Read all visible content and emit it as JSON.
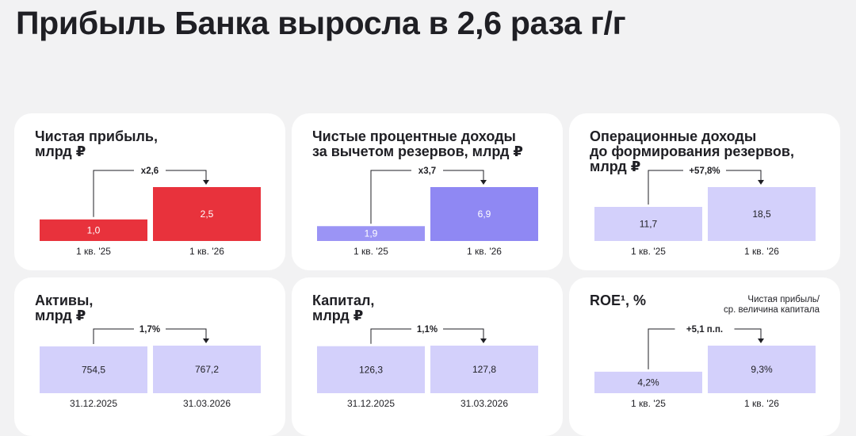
{
  "page": {
    "title": "Прибыль Банка выросла в 2,6 раза г/г"
  },
  "chart_data": [
    {
      "type": "bar",
      "title": "Чистая прибыль,\nмлрд ₽",
      "categories": [
        "1 кв. '25",
        "1 кв. '26"
      ],
      "values": [
        1.0,
        2.5
      ],
      "value_labels": [
        "1,0",
        "2,5"
      ],
      "change_label": "x2,6",
      "bar_colors": [
        "#e8323c",
        "#e8323c"
      ],
      "label_color": "#ffffff",
      "ylim": [
        0,
        2.5
      ]
    },
    {
      "type": "bar",
      "title": "Чистые процентные доходы\nза вычетом резервов, млрд ₽",
      "categories": [
        "1 кв. '25",
        "1 кв. '26"
      ],
      "values": [
        1.9,
        6.9
      ],
      "value_labels": [
        "1,9",
        "6,9"
      ],
      "change_label": "x3,7",
      "bar_colors": [
        "#9b94f5",
        "#8f88f3"
      ],
      "label_color": "#ffffff",
      "ylim": [
        0,
        6.9
      ]
    },
    {
      "type": "bar",
      "title": "Операционные доходы\nдо формирования резервов,\nмлрд ₽",
      "categories": [
        "1 кв. '25",
        "1 кв. '26"
      ],
      "values": [
        11.7,
        18.5
      ],
      "value_labels": [
        "11,7",
        "18,5"
      ],
      "change_label": "+57,8%",
      "bar_colors": [
        "#d3d0fb",
        "#d3d0fb"
      ],
      "label_color": "#1f1f24",
      "ylim": [
        0,
        18.5
      ]
    },
    {
      "type": "bar",
      "title": "Активы,\nмлрд ₽",
      "categories": [
        "31.12.2025",
        "31.03.2026"
      ],
      "values": [
        754.5,
        767.2
      ],
      "value_labels": [
        "754,5",
        "767,2"
      ],
      "change_label": "1,7%",
      "bar_colors": [
        "#d3d0fb",
        "#d3d0fb"
      ],
      "label_color": "#1f1f24",
      "ylim": [
        0,
        767.2
      ]
    },
    {
      "type": "bar",
      "title": "Капитал,\nмлрд ₽",
      "categories": [
        "31.12.2025",
        "31.03.2026"
      ],
      "values": [
        126.3,
        127.8
      ],
      "value_labels": [
        "126,3",
        "127,8"
      ],
      "change_label": "1,1%",
      "bar_colors": [
        "#d3d0fb",
        "#d3d0fb"
      ],
      "label_color": "#1f1f24",
      "ylim": [
        0,
        127.8
      ]
    },
    {
      "type": "bar",
      "title": "ROE¹, %",
      "note": "Чистая прибыль/\nср. величина капитала",
      "categories": [
        "1 кв. '25",
        "1 кв. '26"
      ],
      "values": [
        4.2,
        9.3
      ],
      "value_labels": [
        "4,2%",
        "9,3%"
      ],
      "change_label": "+5,1 п.п.",
      "bar_colors": [
        "#d3d0fb",
        "#d3d0fb"
      ],
      "label_color": "#1f1f24",
      "ylim": [
        0,
        9.3
      ]
    }
  ]
}
